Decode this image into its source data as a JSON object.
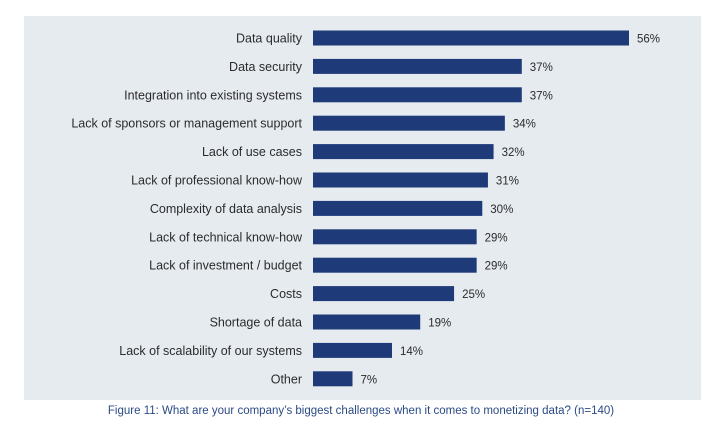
{
  "chart_data": {
    "type": "bar",
    "orientation": "horizontal",
    "categories": [
      "Data quality",
      "Data security",
      "Integration into existing systems",
      "Lack of sponsors or management support",
      "Lack of use cases",
      "Lack of professional know-how",
      "Complexity of data analysis",
      "Lack of technical know-how",
      "Lack of investment / budget",
      "Costs",
      "Shortage of data",
      "Lack of scalability of our systems",
      "Other"
    ],
    "values": [
      56,
      37,
      37,
      34,
      32,
      31,
      30,
      29,
      29,
      25,
      19,
      14,
      7
    ],
    "value_labels": [
      "56%",
      "37%",
      "37%",
      "34%",
      "32%",
      "31%",
      "30%",
      "29%",
      "29%",
      "25%",
      "19%",
      "14%",
      "7%"
    ],
    "unit": "%",
    "title": "",
    "xlabel": "",
    "ylabel": "",
    "xlim": [
      0,
      56
    ],
    "grid": false,
    "bar_color": "#1f3a78",
    "background_color": "#e6ebf0"
  },
  "caption": "Figure 11: What are your company’s biggest challenges when it comes to monetizing data? (n=140)"
}
